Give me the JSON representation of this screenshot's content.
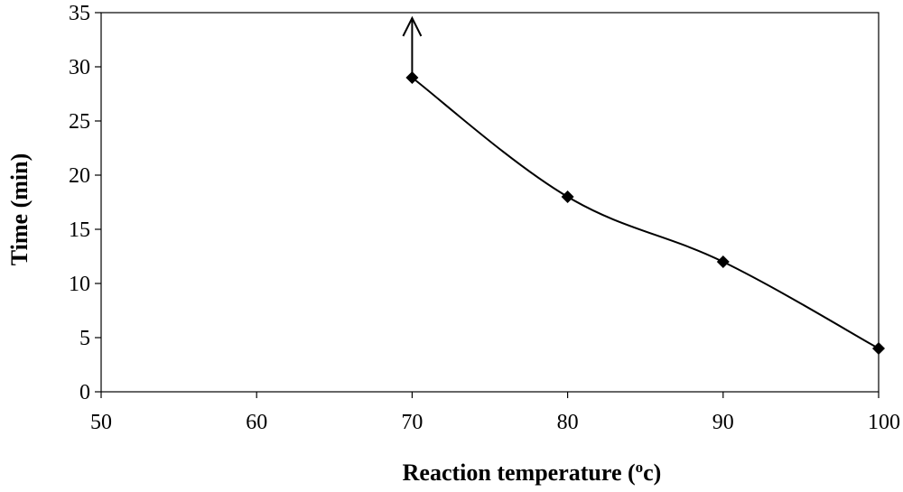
{
  "chart_data": {
    "type": "line",
    "title": "",
    "xlabel": "Reaction temperature (",
    "xlabel_sup": "o",
    "xlabel_tail": "c)",
    "ylabel": "Time (min)",
    "xlim": [
      50,
      100
    ],
    "ylim": [
      0,
      35
    ],
    "x_ticks": [
      50,
      60,
      70,
      80,
      90,
      100
    ],
    "y_ticks": [
      0,
      5,
      10,
      15,
      20,
      25,
      30,
      35
    ],
    "x_tick_labels": [
      "50",
      "60",
      "70",
      "80",
      "90",
      "100"
    ],
    "y_tick_labels": [
      "0",
      "5",
      "10",
      "15",
      "20",
      "25",
      "30",
      "35"
    ],
    "grid": false,
    "legend": "none",
    "marker": "diamond",
    "line_color": "#000000",
    "series": [
      {
        "x": [
          70,
          80,
          90,
          100
        ],
        "y": [
          29,
          18,
          12,
          4
        ]
      }
    ],
    "annotations": [
      {
        "type": "arrow-up",
        "from": [
          70,
          29
        ],
        "to": [
          70,
          35
        ]
      }
    ]
  }
}
